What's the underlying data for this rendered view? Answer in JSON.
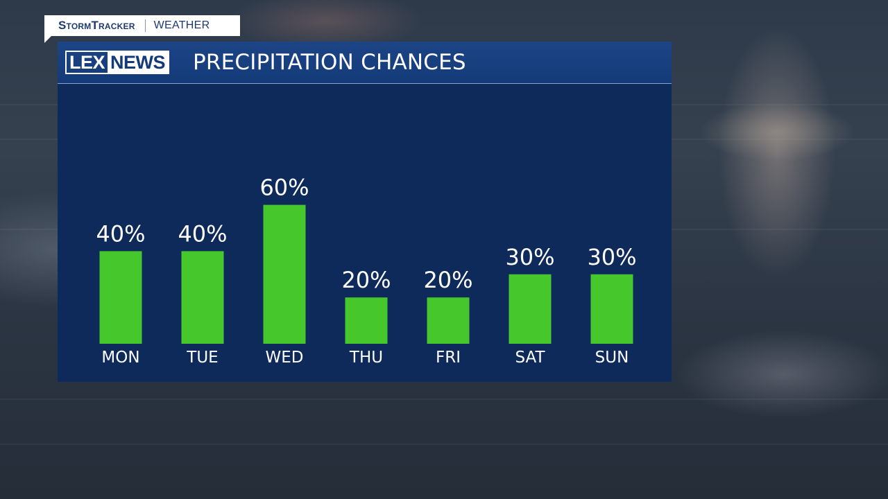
{
  "brand": {
    "name": "StormTracker",
    "section": "Weather"
  },
  "logo": {
    "left_text": "LEX",
    "right_text": "NEWS"
  },
  "colors": {
    "panel_background": "#0e2a5b",
    "header_background": "#1c4586",
    "bar": "#46c82d",
    "text": "#ffffff"
  },
  "chart_data": {
    "type": "bar",
    "title": "PRECIPITATION CHANCES",
    "categories": [
      "MON",
      "TUE",
      "WED",
      "THU",
      "FRI",
      "SAT",
      "SUN"
    ],
    "values": [
      40,
      40,
      60,
      20,
      20,
      30,
      30
    ],
    "value_labels": [
      "40%",
      "40%",
      "60%",
      "20%",
      "20%",
      "30%",
      "30%"
    ],
    "unit": "%",
    "ylim": [
      0,
      100
    ],
    "grid": false,
    "legend": "none"
  }
}
